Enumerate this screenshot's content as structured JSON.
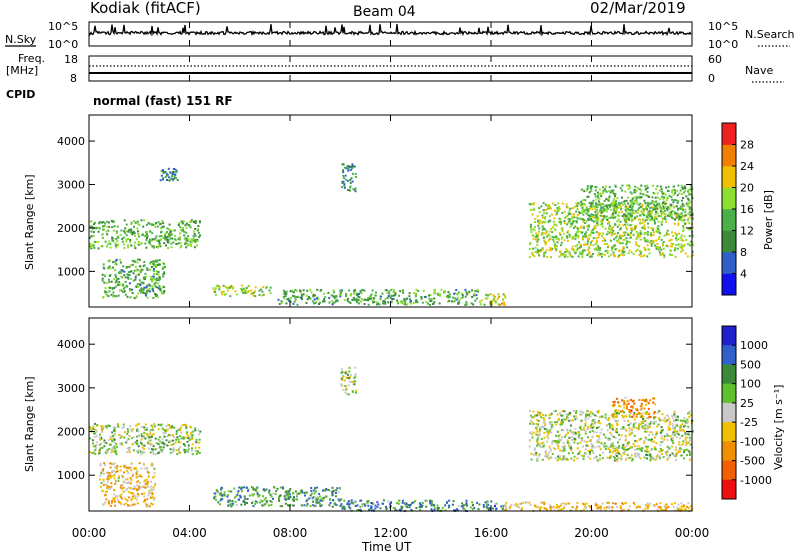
{
  "header": {
    "station": "Kodiak (fitACF)",
    "beam": "Beam 04",
    "date": "02/Mar/2019"
  },
  "nsky_panel": {
    "left_label": "N.Sky",
    "left_ticks": [
      "10^5",
      "10^0"
    ],
    "right_label": "N.Search",
    "right_ticks": [
      "10^5",
      "10^0"
    ]
  },
  "freq_panel": {
    "left_label_1": "Freq.",
    "left_label_2": "[MHz]",
    "left_ticks": [
      "18",
      "8"
    ],
    "right_label": "Nave",
    "right_ticks": [
      "60",
      "0"
    ]
  },
  "cpid": {
    "label": "CPID",
    "value": "normal (fast) 151 RF"
  },
  "x_axis": {
    "label": "Time UT",
    "ticks": [
      "00:00",
      "04:00",
      "08:00",
      "12:00",
      "16:00",
      "20:00",
      "00:00"
    ]
  },
  "colors": {
    "power": [
      "#1010ee",
      "#2f5fc8",
      "#3a8a3a",
      "#4ab04a",
      "#8ede2e",
      "#f0c000",
      "#f08000",
      "#ee2020"
    ],
    "velocity": [
      "#2020cc",
      "#3060cc",
      "#3a8a3a",
      "#60c030",
      "#c8c8c8",
      "#f0c000",
      "#f09000",
      "#f06000",
      "#ee1010"
    ]
  },
  "chart_data": [
    {
      "type": "heatmap",
      "title": "",
      "xlabel": "Time UT",
      "ylabel": "Slant Range [km]",
      "xlim": [
        0,
        24
      ],
      "ylim": [
        180,
        4600
      ],
      "yticks": [
        "1000",
        "2000",
        "3000",
        "4000"
      ],
      "colorbar": {
        "label": "Power [dB]",
        "ticks": [
          "4",
          "8",
          "12",
          "16",
          "20",
          "24",
          "28"
        ],
        "range": [
          0,
          32
        ]
      },
      "regions": [
        {
          "x": [
            0.0,
            4.4
          ],
          "y": [
            1550,
            2200
          ],
          "level": 0.45
        },
        {
          "x": [
            0.5,
            3.0
          ],
          "y": [
            400,
            1300
          ],
          "level": 0.4
        },
        {
          "x": [
            2.8,
            3.5
          ],
          "y": [
            3100,
            3400
          ],
          "level": 0.3
        },
        {
          "x": [
            10.0,
            10.6
          ],
          "y": [
            2850,
            3500
          ],
          "level": 0.3
        },
        {
          "x": [
            4.9,
            7.2
          ],
          "y": [
            450,
            700
          ],
          "level": 0.55
        },
        {
          "x": [
            7.5,
            15.5
          ],
          "y": [
            250,
            600
          ],
          "level": 0.4
        },
        {
          "x": [
            15.5,
            16.6
          ],
          "y": [
            250,
            500
          ],
          "level": 0.6
        },
        {
          "x": [
            17.5,
            24.0
          ],
          "y": [
            1350,
            2600
          ],
          "level": 0.55
        },
        {
          "x": [
            19.5,
            24.0
          ],
          "y": [
            2200,
            3000
          ],
          "level": 0.45
        }
      ]
    },
    {
      "type": "heatmap",
      "title": "",
      "xlabel": "Time UT",
      "ylabel": "Slant Range [km]",
      "xlim": [
        0,
        24
      ],
      "ylim": [
        180,
        4600
      ],
      "yticks": [
        "1000",
        "2000",
        "3000",
        "4000"
      ],
      "colorbar": {
        "label": "Velocity [m s⁻¹]",
        "ticks": [
          "1000",
          "500",
          "100",
          "25",
          "-25",
          "-100",
          "-500",
          "-1000"
        ]
      },
      "regions": [
        {
          "x": [
            0.0,
            4.4
          ],
          "y": [
            1500,
            2200
          ],
          "level": 0.45
        },
        {
          "x": [
            0.4,
            2.6
          ],
          "y": [
            300,
            1300
          ],
          "level": 0.6
        },
        {
          "x": [
            4.9,
            10.0
          ],
          "y": [
            300,
            750
          ],
          "level": 0.3
        },
        {
          "x": [
            10.0,
            10.6
          ],
          "y": [
            2850,
            3500
          ],
          "level": 0.45
        },
        {
          "x": [
            10.0,
            16.5
          ],
          "y": [
            200,
            450
          ],
          "level": 0.28
        },
        {
          "x": [
            17.5,
            24.0
          ],
          "y": [
            1350,
            2500
          ],
          "level": 0.48
        },
        {
          "x": [
            20.8,
            22.5
          ],
          "y": [
            2350,
            2800
          ],
          "level": 0.72
        },
        {
          "x": [
            16.5,
            24.0
          ],
          "y": [
            200,
            400
          ],
          "level": 0.62
        }
      ]
    }
  ]
}
